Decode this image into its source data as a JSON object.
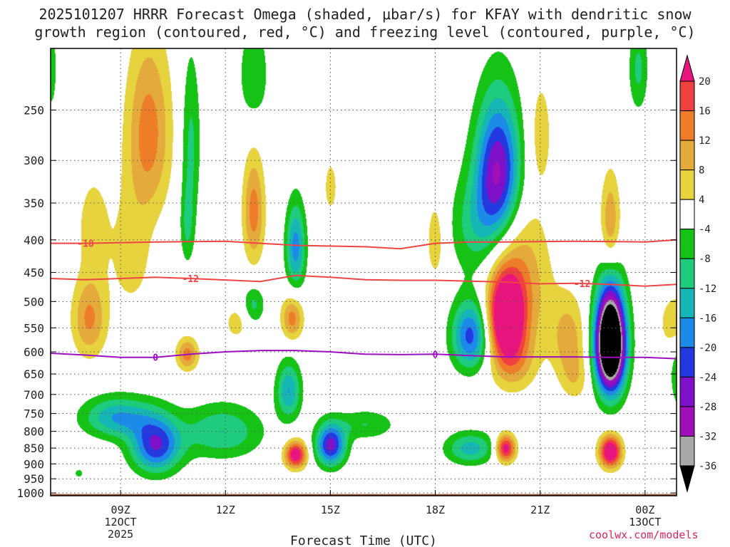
{
  "title_line1": "2025101207 HRRR Forecast Omega (shaded, μbar/s) for KFAY with dendritic snow",
  "title_line2": "growth region (contoured, red, °C) and freezing level (contoured, purple, °C)",
  "credit": "coolwx.com/models",
  "colors": {
    "frame": "#000000",
    "grid": "#555555",
    "ground": "#a0522d",
    "dgz_contour": "#ee4444",
    "freezing_contour": "#9b0fc0"
  },
  "chart_data": {
    "type": "heatmap",
    "title": "2025101207 HRRR Forecast Omega (shaded, μbar/s) for KFAY with dendritic snow growth region (contoured, red, °C) and freezing level (contoured, purple, °C)",
    "xlabel": "Forecast Time (UTC)",
    "ylabel": "",
    "x_range_hours": [
      7,
      24.9
    ],
    "y_range_hpa": [
      200,
      1010
    ],
    "x_ticks": [
      {
        "hour": 9,
        "label": "09Z",
        "sub1": "12OCT",
        "sub2": "2025"
      },
      {
        "hour": 12,
        "label": "12Z",
        "sub1": "",
        "sub2": ""
      },
      {
        "hour": 15,
        "label": "15Z",
        "sub1": "",
        "sub2": ""
      },
      {
        "hour": 18,
        "label": "18Z",
        "sub1": "",
        "sub2": ""
      },
      {
        "hour": 21,
        "label": "21Z",
        "sub1": "",
        "sub2": ""
      },
      {
        "hour": 24,
        "label": "00Z",
        "sub1": "13OCT",
        "sub2": ""
      }
    ],
    "y_ticks": [
      250,
      300,
      350,
      400,
      450,
      500,
      550,
      600,
      650,
      700,
      750,
      800,
      850,
      900,
      950,
      1000
    ],
    "grid": true,
    "colorbar": {
      "labels": [
        "20",
        "16",
        "12",
        "8",
        "4",
        "-4",
        "-8",
        "-12",
        "-16",
        "-20",
        "-24",
        "-28",
        "-32",
        "-36"
      ],
      "bins": [
        {
          "lo": 20,
          "hi": null,
          "color": "#e8157e"
        },
        {
          "lo": 16,
          "hi": 20,
          "color": "#f04040"
        },
        {
          "lo": 12,
          "hi": 16,
          "color": "#ee7d2a"
        },
        {
          "lo": 8,
          "hi": 12,
          "color": "#e4ab3c"
        },
        {
          "lo": 4,
          "hi": 8,
          "color": "#e6d33e"
        },
        {
          "lo": -4,
          "hi": 4,
          "color": "#ffffff"
        },
        {
          "lo": -8,
          "hi": -4,
          "color": "#17c217"
        },
        {
          "lo": -12,
          "hi": -8,
          "color": "#1fcb7c"
        },
        {
          "lo": -16,
          "hi": -12,
          "color": "#17b6b6"
        },
        {
          "lo": -20,
          "hi": -16,
          "color": "#1c8ae8"
        },
        {
          "lo": -24,
          "hi": -20,
          "color": "#2438e0"
        },
        {
          "lo": -28,
          "hi": -24,
          "color": "#7d10c8"
        },
        {
          "lo": -32,
          "hi": -28,
          "color": "#a00fb8"
        },
        {
          "lo": -36,
          "hi": -32,
          "color": "#a8a8a8"
        },
        {
          "lo": null,
          "hi": -36,
          "color": "#000000"
        }
      ]
    },
    "omega_features": [
      {
        "hour": 9.8,
        "p": 270,
        "value": 14,
        "sx": 0.45,
        "sp": 60
      },
      {
        "hour": 9.3,
        "p": 420,
        "value": 6,
        "sx": 0.45,
        "sp": 70
      },
      {
        "hour": 8.1,
        "p": 530,
        "value": 13,
        "sx": 0.35,
        "sp": 55
      },
      {
        "hour": 8.2,
        "p": 380,
        "value": 7,
        "sx": 0.3,
        "sp": 45
      },
      {
        "hour": 10.9,
        "p": 605,
        "value": 14,
        "sx": 0.22,
        "sp": 25
      },
      {
        "hour": 12.3,
        "p": 540,
        "value": 6,
        "sx": 0.25,
        "sp": 25
      },
      {
        "hour": 12.8,
        "p": 360,
        "value": 14,
        "sx": 0.22,
        "sp": 50
      },
      {
        "hour": 13.9,
        "p": 530,
        "value": 14,
        "sx": 0.22,
        "sp": 30
      },
      {
        "hour": 15.0,
        "p": 330,
        "value": 6,
        "sx": 0.15,
        "sp": 25
      },
      {
        "hour": 14.0,
        "p": 870,
        "value": 25,
        "sx": 0.22,
        "sp": 30
      },
      {
        "hour": 18.0,
        "p": 400,
        "value": 7,
        "sx": 0.2,
        "sp": 45
      },
      {
        "hour": 20.0,
        "p": 525,
        "value": 28,
        "sx": 0.35,
        "sp": 55
      },
      {
        "hour": 20.4,
        "p": 470,
        "value": 12,
        "sx": 0.6,
        "sp": 90
      },
      {
        "hour": 20.2,
        "p": 620,
        "value": 10,
        "sx": 0.45,
        "sp": 50
      },
      {
        "hour": 21.0,
        "p": 270,
        "value": 6,
        "sx": 0.25,
        "sp": 40
      },
      {
        "hour": 23.0,
        "p": 375,
        "value": 12,
        "sx": 0.2,
        "sp": 45
      },
      {
        "hour": 24.9,
        "p": 540,
        "value": 8,
        "sx": 0.35,
        "sp": 40
      },
      {
        "hour": 20.0,
        "p": 850,
        "value": 24,
        "sx": 0.2,
        "sp": 30
      },
      {
        "hour": 23.0,
        "p": 860,
        "value": 28,
        "sx": 0.22,
        "sp": 35
      },
      {
        "hour": 22.0,
        "p": 660,
        "value": 6,
        "sx": 0.3,
        "sp": 40
      },
      {
        "hour": 21.8,
        "p": 570,
        "value": 10,
        "sx": 0.35,
        "sp": 60
      },
      {
        "hour": 11.0,
        "p": 280,
        "value": -9,
        "sx": 0.2,
        "sp": 60
      },
      {
        "hour": 10.9,
        "p": 380,
        "value": -8,
        "sx": 0.15,
        "sp": 40
      },
      {
        "hour": 12.8,
        "p": 220,
        "value": -8,
        "sx": 0.3,
        "sp": 30
      },
      {
        "hour": 14.0,
        "p": 410,
        "value": -18,
        "sx": 0.2,
        "sp": 45
      },
      {
        "hour": 12.8,
        "p": 505,
        "value": -9,
        "sx": 0.22,
        "sp": 25
      },
      {
        "hour": 19.8,
        "p": 310,
        "value": -28,
        "sx": 0.45,
        "sp": 55
      },
      {
        "hour": 19.2,
        "p": 380,
        "value": -10,
        "sx": 0.55,
        "sp": 50
      },
      {
        "hour": 19.0,
        "p": 565,
        "value": -22,
        "sx": 0.38,
        "sp": 50
      },
      {
        "hour": 23.0,
        "p": 580,
        "value": -60,
        "sx": 0.3,
        "sp": 75
      },
      {
        "hour": 23.8,
        "p": 215,
        "value": -9,
        "sx": 0.2,
        "sp": 25
      },
      {
        "hour": 7.0,
        "p": 215,
        "value": -6,
        "sx": 0.15,
        "sp": 30
      },
      {
        "hour": 8.9,
        "p": 760,
        "value": -16,
        "sx": 0.7,
        "sp": 40
      },
      {
        "hour": 10.0,
        "p": 840,
        "value": -24,
        "sx": 0.5,
        "sp": 60
      },
      {
        "hour": 11.9,
        "p": 800,
        "value": -12,
        "sx": 0.8,
        "sp": 55
      },
      {
        "hour": 13.8,
        "p": 690,
        "value": -16,
        "sx": 0.25,
        "sp": 50
      },
      {
        "hour": 15.0,
        "p": 840,
        "value": -26,
        "sx": 0.3,
        "sp": 45
      },
      {
        "hour": 16.0,
        "p": 780,
        "value": -8,
        "sx": 0.6,
        "sp": 30
      },
      {
        "hour": 19.0,
        "p": 850,
        "value": -14,
        "sx": 0.5,
        "sp": 35
      },
      {
        "hour": 7.8,
        "p": 930,
        "value": -6,
        "sx": 0.1,
        "sp": 12
      },
      {
        "hour": 25.0,
        "p": 650,
        "value": -9,
        "sx": 0.2,
        "sp": 60
      }
    ],
    "dgz_contours": [
      {
        "label": "-18",
        "label_hour": 8.0,
        "points": [
          [
            7,
            405
          ],
          [
            8,
            405
          ],
          [
            10,
            403
          ],
          [
            12,
            402
          ],
          [
            14,
            408
          ],
          [
            16,
            410
          ],
          [
            17,
            413
          ],
          [
            18,
            405
          ],
          [
            19,
            403
          ],
          [
            20,
            403
          ],
          [
            22,
            402
          ],
          [
            24,
            403
          ],
          [
            24.9,
            400
          ]
        ]
      },
      {
        "label": "-12",
        "label_hour": 11.0,
        "points": [
          [
            7,
            460
          ],
          [
            8,
            462
          ],
          [
            10,
            458
          ],
          [
            11,
            460
          ],
          [
            13,
            465
          ],
          [
            14,
            455
          ],
          [
            15,
            458
          ],
          [
            16,
            462
          ],
          [
            17,
            463
          ],
          [
            18,
            463
          ],
          [
            20,
            466
          ],
          [
            21,
            469
          ],
          [
            22,
            468
          ],
          [
            23,
            470
          ],
          [
            24,
            473
          ],
          [
            24.9,
            470
          ]
        ]
      }
    ],
    "freezing_contour": {
      "label": "0",
      "label_hour": 10.0,
      "label_hour2": 18.0,
      "points": [
        [
          7,
          603
        ],
        [
          8,
          607
        ],
        [
          9,
          612
        ],
        [
          10,
          612
        ],
        [
          11,
          605
        ],
        [
          12,
          600
        ],
        [
          13,
          597
        ],
        [
          14,
          597
        ],
        [
          15,
          600
        ],
        [
          16,
          605
        ],
        [
          17,
          606
        ],
        [
          18,
          605
        ],
        [
          19,
          608
        ],
        [
          20,
          611
        ],
        [
          21,
          611
        ],
        [
          22,
          611
        ],
        [
          23,
          612
        ],
        [
          24,
          612
        ],
        [
          24.9,
          615
        ]
      ]
    }
  }
}
